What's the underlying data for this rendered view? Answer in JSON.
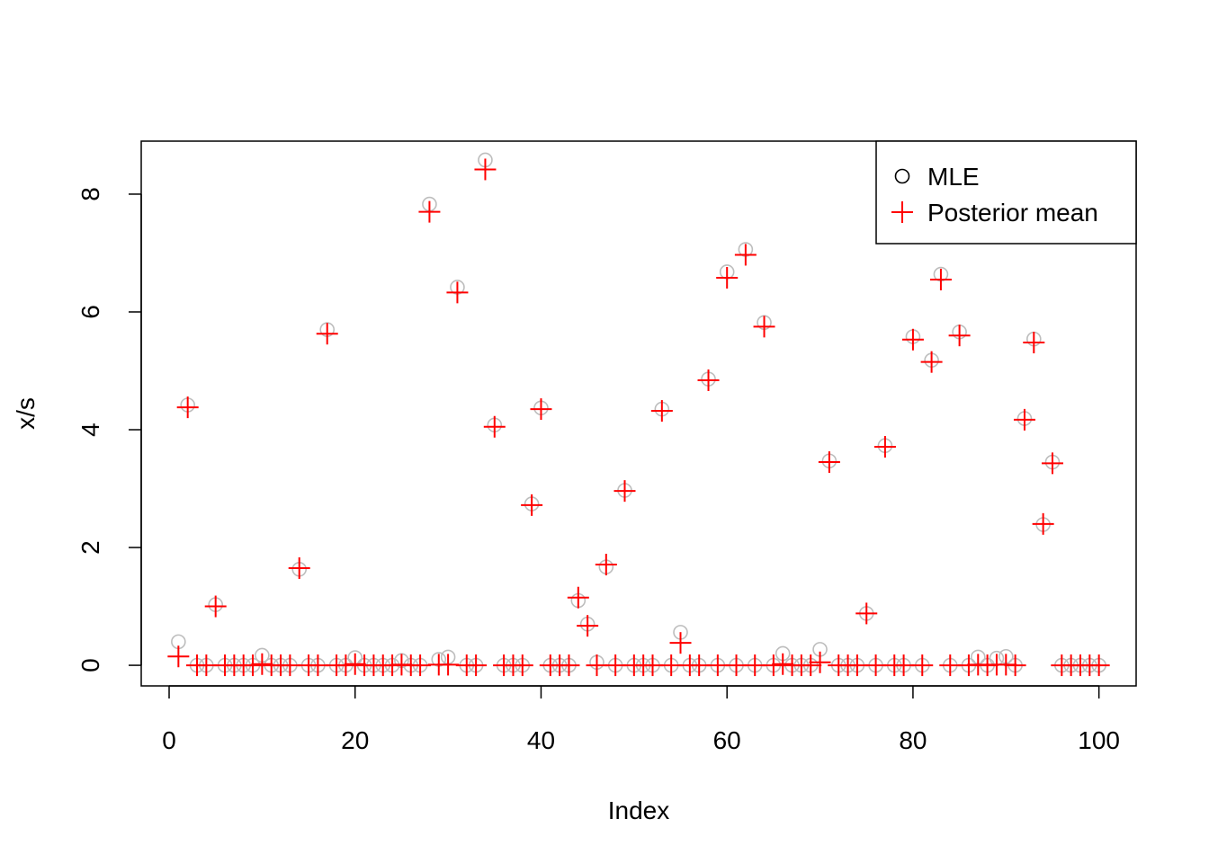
{
  "chart_data": {
    "type": "scatter",
    "xlabel": "Index",
    "ylabel": "x/s",
    "xlim": [
      -3,
      104
    ],
    "ylim": [
      -0.35,
      8.9
    ],
    "x_ticks": [
      0,
      20,
      40,
      60,
      80,
      100
    ],
    "y_ticks": [
      0,
      2,
      4,
      6,
      8
    ],
    "grid": false,
    "legend": {
      "placement": "top-right",
      "entries": [
        {
          "label": "MLE",
          "symbol": "circle",
          "color": "#000000"
        },
        {
          "label": "Posterior mean",
          "symbol": "plus",
          "color": "#ff0000"
        }
      ]
    },
    "series": [
      {
        "name": "MLE",
        "marker": "circle",
        "color": "#bdbdbd",
        "values": [
          0.4,
          4.42,
          0,
          0,
          1.03,
          0,
          0,
          0,
          0,
          0.17,
          0,
          0,
          0,
          1.63,
          0,
          0,
          5.7,
          0,
          0,
          0.13,
          0,
          0,
          0,
          0,
          0.08,
          0,
          0,
          7.83,
          0.1,
          0.14,
          6.42,
          0,
          0,
          8.58,
          4.08,
          0,
          0,
          0,
          2.74,
          4.37,
          0,
          0,
          0,
          1.1,
          0.7,
          0.05,
          1.67,
          0,
          2.97,
          0,
          0,
          0,
          4.35,
          0,
          0.56,
          0,
          0,
          4.86,
          0,
          6.68,
          0,
          7.06,
          0,
          5.82,
          0,
          0.2,
          0,
          0,
          0,
          0.27,
          3.47,
          0,
          0,
          0,
          0.88,
          0,
          3.73,
          0,
          0,
          5.58,
          0,
          5.18,
          6.64,
          0,
          5.66,
          0,
          0.14,
          0,
          0.12,
          0.15,
          0,
          4.19,
          5.54,
          2.39,
          3.45,
          0,
          0,
          0,
          0,
          0
        ]
      },
      {
        "name": "Posterior mean",
        "marker": "plus",
        "color": "#ff0000",
        "values": [
          0.15,
          4.38,
          0,
          0,
          1.0,
          0,
          0,
          0,
          0,
          0.02,
          0,
          0,
          0,
          1.65,
          0,
          0,
          5.63,
          0,
          0,
          0.02,
          0,
          0,
          0,
          0,
          0.01,
          0,
          0,
          7.7,
          0.01,
          0.01,
          6.33,
          0,
          0,
          8.42,
          4.05,
          0,
          0,
          0,
          2.72,
          4.35,
          0,
          0,
          0,
          1.15,
          0.67,
          0,
          1.71,
          0,
          2.96,
          0,
          0,
          0,
          4.32,
          0,
          0.38,
          0,
          0,
          4.84,
          0,
          6.58,
          0,
          6.97,
          0,
          5.75,
          0,
          0.02,
          0,
          0,
          0,
          0.05,
          3.45,
          0,
          0,
          0,
          0.88,
          0,
          3.71,
          0,
          0,
          5.53,
          0,
          5.15,
          6.55,
          0,
          5.6,
          0,
          0.01,
          0,
          0.01,
          0.01,
          0,
          4.17,
          5.48,
          2.4,
          3.43,
          0,
          0,
          0,
          0,
          0
        ]
      }
    ]
  }
}
